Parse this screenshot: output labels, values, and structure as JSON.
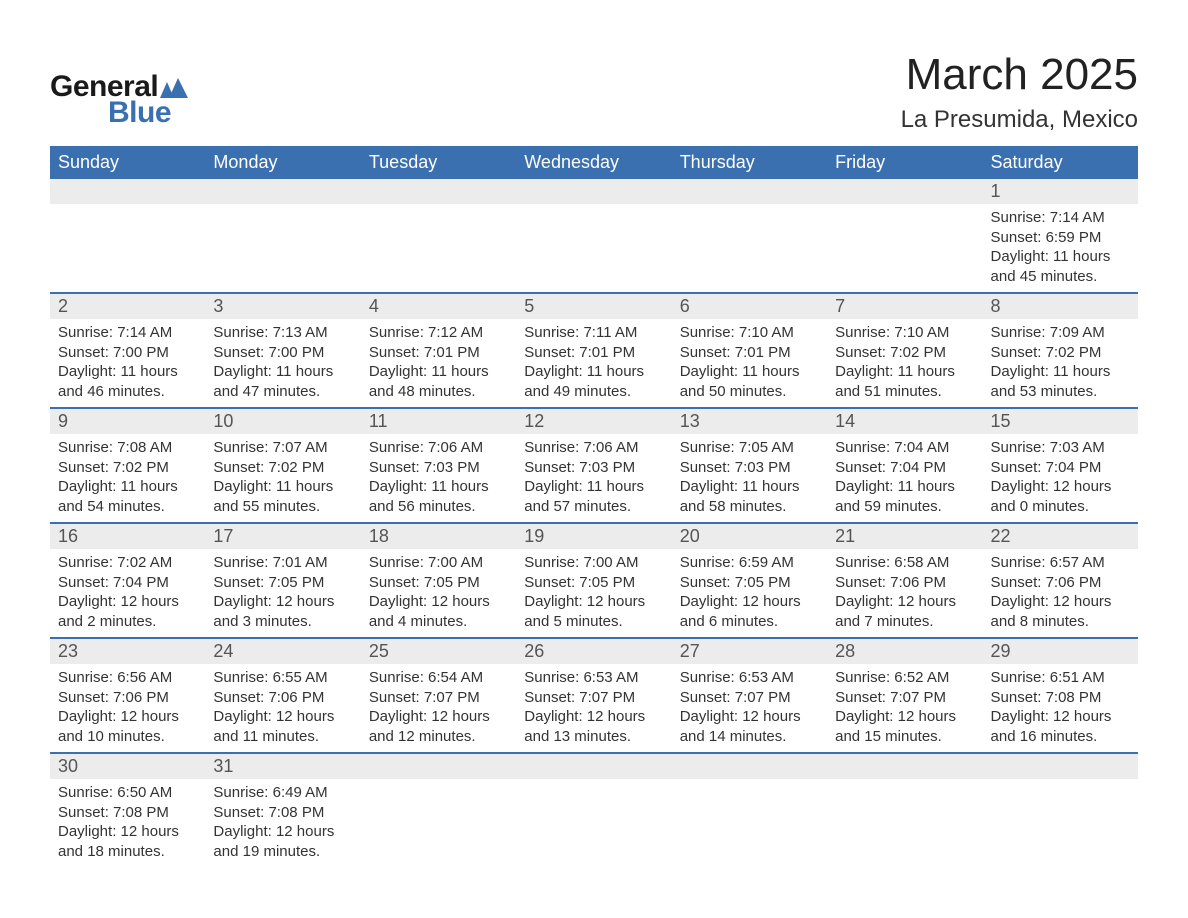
{
  "logo": {
    "text_top": "General",
    "text_bottom": "Blue",
    "icon_color": "#3a6fb0"
  },
  "header": {
    "title": "March 2025",
    "subtitle": "La Presumida, Mexico"
  },
  "colors": {
    "header_bg": "#3a6fb0",
    "header_text": "#ffffff",
    "daynum_bg": "#ececec",
    "row_border": "#3a6fb0",
    "body_text": "#333333"
  },
  "daysOfWeek": [
    "Sunday",
    "Monday",
    "Tuesday",
    "Wednesday",
    "Thursday",
    "Friday",
    "Saturday"
  ],
  "weeks": [
    [
      null,
      null,
      null,
      null,
      null,
      null,
      {
        "n": "1",
        "sunrise": "7:14 AM",
        "sunset": "6:59 PM",
        "daylight": "11 hours and 45 minutes."
      }
    ],
    [
      {
        "n": "2",
        "sunrise": "7:14 AM",
        "sunset": "7:00 PM",
        "daylight": "11 hours and 46 minutes."
      },
      {
        "n": "3",
        "sunrise": "7:13 AM",
        "sunset": "7:00 PM",
        "daylight": "11 hours and 47 minutes."
      },
      {
        "n": "4",
        "sunrise": "7:12 AM",
        "sunset": "7:01 PM",
        "daylight": "11 hours and 48 minutes."
      },
      {
        "n": "5",
        "sunrise": "7:11 AM",
        "sunset": "7:01 PM",
        "daylight": "11 hours and 49 minutes."
      },
      {
        "n": "6",
        "sunrise": "7:10 AM",
        "sunset": "7:01 PM",
        "daylight": "11 hours and 50 minutes."
      },
      {
        "n": "7",
        "sunrise": "7:10 AM",
        "sunset": "7:02 PM",
        "daylight": "11 hours and 51 minutes."
      },
      {
        "n": "8",
        "sunrise": "7:09 AM",
        "sunset": "7:02 PM",
        "daylight": "11 hours and 53 minutes."
      }
    ],
    [
      {
        "n": "9",
        "sunrise": "7:08 AM",
        "sunset": "7:02 PM",
        "daylight": "11 hours and 54 minutes."
      },
      {
        "n": "10",
        "sunrise": "7:07 AM",
        "sunset": "7:02 PM",
        "daylight": "11 hours and 55 minutes."
      },
      {
        "n": "11",
        "sunrise": "7:06 AM",
        "sunset": "7:03 PM",
        "daylight": "11 hours and 56 minutes."
      },
      {
        "n": "12",
        "sunrise": "7:06 AM",
        "sunset": "7:03 PM",
        "daylight": "11 hours and 57 minutes."
      },
      {
        "n": "13",
        "sunrise": "7:05 AM",
        "sunset": "7:03 PM",
        "daylight": "11 hours and 58 minutes."
      },
      {
        "n": "14",
        "sunrise": "7:04 AM",
        "sunset": "7:04 PM",
        "daylight": "11 hours and 59 minutes."
      },
      {
        "n": "15",
        "sunrise": "7:03 AM",
        "sunset": "7:04 PM",
        "daylight": "12 hours and 0 minutes."
      }
    ],
    [
      {
        "n": "16",
        "sunrise": "7:02 AM",
        "sunset": "7:04 PM",
        "daylight": "12 hours and 2 minutes."
      },
      {
        "n": "17",
        "sunrise": "7:01 AM",
        "sunset": "7:05 PM",
        "daylight": "12 hours and 3 minutes."
      },
      {
        "n": "18",
        "sunrise": "7:00 AM",
        "sunset": "7:05 PM",
        "daylight": "12 hours and 4 minutes."
      },
      {
        "n": "19",
        "sunrise": "7:00 AM",
        "sunset": "7:05 PM",
        "daylight": "12 hours and 5 minutes."
      },
      {
        "n": "20",
        "sunrise": "6:59 AM",
        "sunset": "7:05 PM",
        "daylight": "12 hours and 6 minutes."
      },
      {
        "n": "21",
        "sunrise": "6:58 AM",
        "sunset": "7:06 PM",
        "daylight": "12 hours and 7 minutes."
      },
      {
        "n": "22",
        "sunrise": "6:57 AM",
        "sunset": "7:06 PM",
        "daylight": "12 hours and 8 minutes."
      }
    ],
    [
      {
        "n": "23",
        "sunrise": "6:56 AM",
        "sunset": "7:06 PM",
        "daylight": "12 hours and 10 minutes."
      },
      {
        "n": "24",
        "sunrise": "6:55 AM",
        "sunset": "7:06 PM",
        "daylight": "12 hours and 11 minutes."
      },
      {
        "n": "25",
        "sunrise": "6:54 AM",
        "sunset": "7:07 PM",
        "daylight": "12 hours and 12 minutes."
      },
      {
        "n": "26",
        "sunrise": "6:53 AM",
        "sunset": "7:07 PM",
        "daylight": "12 hours and 13 minutes."
      },
      {
        "n": "27",
        "sunrise": "6:53 AM",
        "sunset": "7:07 PM",
        "daylight": "12 hours and 14 minutes."
      },
      {
        "n": "28",
        "sunrise": "6:52 AM",
        "sunset": "7:07 PM",
        "daylight": "12 hours and 15 minutes."
      },
      {
        "n": "29",
        "sunrise": "6:51 AM",
        "sunset": "7:08 PM",
        "daylight": "12 hours and 16 minutes."
      }
    ],
    [
      {
        "n": "30",
        "sunrise": "6:50 AM",
        "sunset": "7:08 PM",
        "daylight": "12 hours and 18 minutes."
      },
      {
        "n": "31",
        "sunrise": "6:49 AM",
        "sunset": "7:08 PM",
        "daylight": "12 hours and 19 minutes."
      },
      null,
      null,
      null,
      null,
      null
    ]
  ],
  "labels": {
    "sunrise": "Sunrise: ",
    "sunset": "Sunset: ",
    "daylight": "Daylight: "
  }
}
